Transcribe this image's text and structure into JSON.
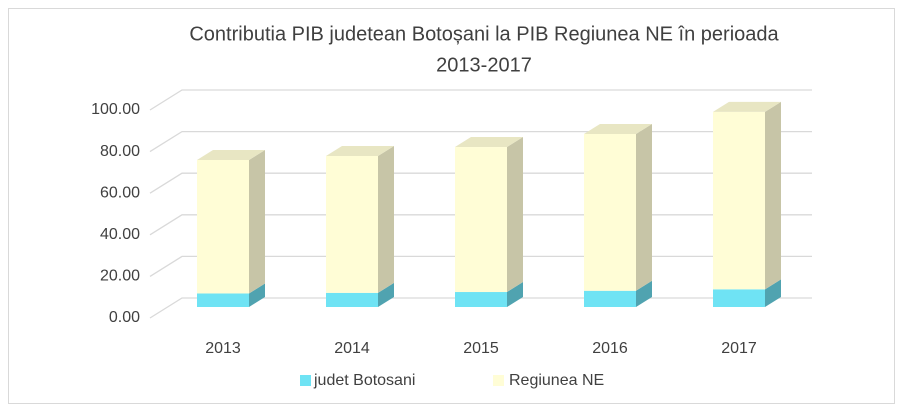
{
  "chart_data": {
    "type": "bar3d_stacked",
    "title": "Contributia PIB judetean Botoșani la PIB Regiunea NE în perioada 2013-2017",
    "categories": [
      "2013",
      "2014",
      "2015",
      "2016",
      "2017"
    ],
    "series": [
      {
        "name": "judet Botosani",
        "color": "#6fe3f4",
        "values": [
          6.5,
          6.8,
          7.2,
          7.8,
          8.5
        ]
      },
      {
        "name": "Regiunea NE",
        "color": "#fffdd6",
        "values": [
          64.2,
          65.8,
          69.7,
          75.4,
          85.3
        ]
      }
    ],
    "ylim": [
      0,
      100
    ],
    "yticks": [
      {
        "value": 0,
        "label": "0.00"
      },
      {
        "value": 20,
        "label": "20.00"
      },
      {
        "value": 40,
        "label": "40.00"
      },
      {
        "value": 60,
        "label": "60.00"
      },
      {
        "value": 80,
        "label": "80.00"
      },
      {
        "value": 100,
        "label": "100.00"
      }
    ],
    "grid": true,
    "legend": "bottom"
  }
}
